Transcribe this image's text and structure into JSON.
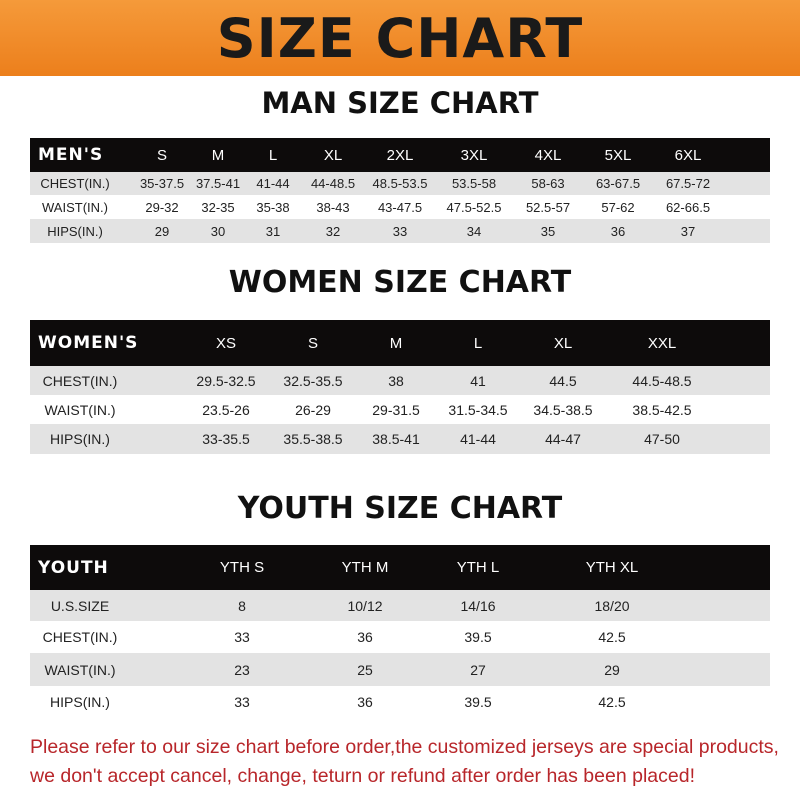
{
  "banner": {
    "title": "SIZE CHART"
  },
  "men": {
    "title": "MAN SIZE CHART",
    "header": [
      "MEN'S",
      "S",
      "M",
      "L",
      "XL",
      "2XL",
      "3XL",
      "4XL",
      "5XL",
      "6XL"
    ],
    "rows": [
      [
        "CHEST(IN.)",
        "35-37.5",
        "37.5-41",
        "41-44",
        "44-48.5",
        "48.5-53.5",
        "53.5-58",
        "58-63",
        "63-67.5",
        "67.5-72"
      ],
      [
        "WAIST(IN.)",
        "29-32",
        "32-35",
        "35-38",
        "38-43",
        "43-47.5",
        "47.5-52.5",
        "52.5-57",
        "57-62",
        "62-66.5"
      ],
      [
        "HIPS(IN.)",
        "29",
        "30",
        "31",
        "32",
        "33",
        "34",
        "35",
        "36",
        "37"
      ]
    ]
  },
  "women": {
    "title": "WOMEN SIZE CHART",
    "header": [
      "WOMEN'S",
      "XS",
      "S",
      "M",
      "L",
      "XL",
      "XXL"
    ],
    "rows": [
      [
        "CHEST(IN.)",
        "29.5-32.5",
        "32.5-35.5",
        "38",
        "41",
        "44.5",
        "44.5-48.5"
      ],
      [
        "WAIST(IN.)",
        "23.5-26",
        "26-29",
        "29-31.5",
        "31.5-34.5",
        "34.5-38.5",
        "38.5-42.5"
      ],
      [
        "HIPS(IN.)",
        "33-35.5",
        "35.5-38.5",
        "38.5-41",
        "41-44",
        "44-47",
        "47-50"
      ]
    ]
  },
  "youth": {
    "title": "YOUTH SIZE CHART",
    "header": [
      "YOUTH",
      "YTH S",
      "YTH M",
      "YTH L",
      "YTH XL"
    ],
    "rows": [
      [
        "U.S.SIZE",
        "8",
        "10/12",
        "14/16",
        "18/20"
      ],
      [
        "CHEST(IN.)",
        "33",
        "36",
        "39.5",
        "42.5"
      ],
      [
        "WAIST(IN.)",
        "23",
        "25",
        "27",
        "29"
      ],
      [
        "HIPS(IN.)",
        "33",
        "36",
        "39.5",
        "42.5"
      ]
    ]
  },
  "footer": {
    "line1": "Please refer to our size chart before order,the customized jerseys are special products,",
    "line2": "we don't accept cancel, change, teturn or refund after order has been placed!"
  },
  "colors": {
    "banner": "#ec7f1c",
    "header_row": "#0d0b0b",
    "stripe": "#e3e3e3",
    "footer_text": "#b8262a"
  }
}
